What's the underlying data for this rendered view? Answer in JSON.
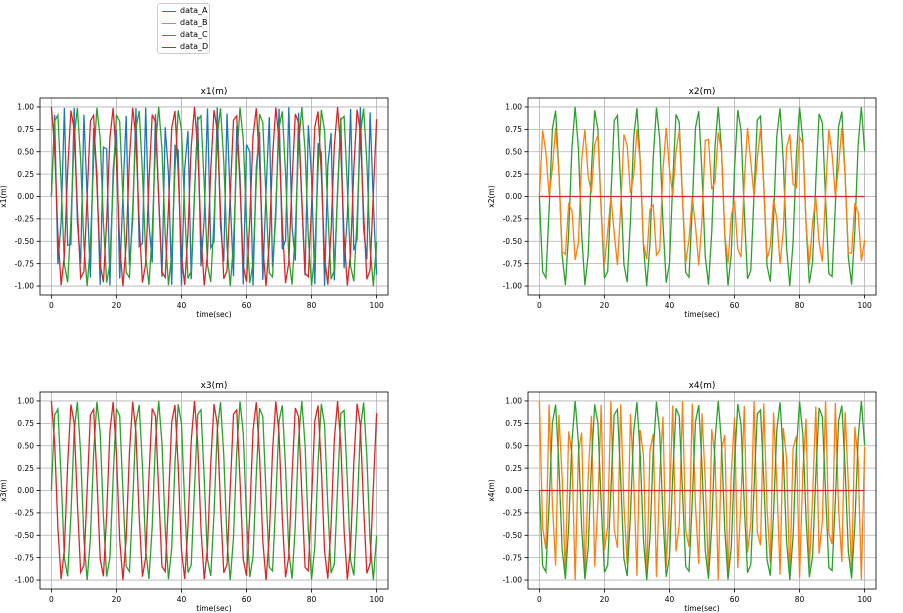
{
  "legend": {
    "items": [
      {
        "label": "data_A",
        "color": "#1f77b4"
      },
      {
        "label": "data_B",
        "color": "#ff7f0e"
      },
      {
        "label": "data_C",
        "color": "#2ca02c"
      },
      {
        "label": "data_D",
        "color": "#d62728"
      }
    ]
  },
  "chart_data": [
    {
      "type": "line",
      "title": "x1(m)",
      "xlabel": "time(sec)",
      "ylabel": "x1(m)",
      "xlim": [
        -3.5,
        103.5
      ],
      "ylim": [
        -1.1,
        1.1
      ],
      "grid": true,
      "xticks": [
        0,
        20,
        40,
        60,
        80,
        100
      ],
      "yticks": [
        -1.0,
        -0.75,
        -0.5,
        -0.25,
        0.0,
        0.25,
        0.5,
        0.75,
        1.0
      ],
      "ytick_labels": [
        "-1.00",
        "-0.75",
        "-0.50",
        "-0.25",
        "0.00",
        "0.25",
        "0.50",
        "0.75",
        "1.00"
      ],
      "x": {
        "start": 0,
        "end": 100,
        "step": 1
      },
      "series": [
        {
          "name": "data_A",
          "color": "#1f77b4",
          "function": "sin(2t)"
        },
        {
          "name": "data_C",
          "color": "#2ca02c",
          "function": "sin(t)"
        },
        {
          "name": "data_D",
          "color": "#d62728",
          "function": "cos(t)"
        }
      ]
    },
    {
      "type": "line",
      "title": "x2(m)",
      "xlabel": "time(sec)",
      "ylabel": "x2(m)",
      "xlim": [
        -3.5,
        103.5
      ],
      "ylim": [
        -1.1,
        1.1
      ],
      "grid": true,
      "xticks": [
        0,
        20,
        40,
        60,
        80,
        100
      ],
      "yticks": [
        -1.0,
        -0.75,
        -0.5,
        -0.25,
        0.0,
        0.25,
        0.5,
        0.75,
        1.0
      ],
      "ytick_labels": [
        "-1.00",
        "-0.75",
        "-0.50",
        "-0.25",
        "0.00",
        "0.25",
        "0.50",
        "0.75",
        "1.00"
      ],
      "x": {
        "start": 0,
        "end": 100,
        "step": 1
      },
      "series": [
        {
          "name": "data_C",
          "color": "#2ca02c",
          "function": "-sin(t)"
        },
        {
          "name": "data_B",
          "color": "#ff7f0e",
          "function": "sin(t)*cos(t/2)"
        },
        {
          "name": "data_D",
          "color": "#d62728",
          "function": "0"
        }
      ]
    },
    {
      "type": "line",
      "title": "x3(m)",
      "xlabel": "time(sec)",
      "ylabel": "x3(m)",
      "xlim": [
        -3.5,
        103.5
      ],
      "ylim": [
        -1.1,
        1.1
      ],
      "grid": true,
      "xticks": [
        0,
        20,
        40,
        60,
        80,
        100
      ],
      "yticks": [
        -1.0,
        -0.75,
        -0.5,
        -0.25,
        0.0,
        0.25,
        0.5,
        0.75,
        1.0
      ],
      "ytick_labels": [
        "-1.00",
        "-0.75",
        "-0.50",
        "-0.25",
        "0.00",
        "0.25",
        "0.50",
        "0.75",
        "1.00"
      ],
      "x": {
        "start": 0,
        "end": 100,
        "step": 1
      },
      "series": [
        {
          "name": "data_C",
          "color": "#2ca02c",
          "function": "sin(t)"
        },
        {
          "name": "data_D",
          "color": "#d62728",
          "function": "cos(t)"
        }
      ]
    },
    {
      "type": "line",
      "title": "x4(m)",
      "xlabel": "time(sec)",
      "ylabel": "x4(m)",
      "xlim": [
        -3.5,
        103.5
      ],
      "ylim": [
        -1.1,
        1.1
      ],
      "grid": true,
      "xticks": [
        0,
        20,
        40,
        60,
        80,
        100
      ],
      "yticks": [
        -1.0,
        -0.75,
        -0.5,
        -0.25,
        0.0,
        0.25,
        0.5,
        0.75,
        1.0
      ],
      "ytick_labels": [
        "-1.00",
        "-0.75",
        "-0.50",
        "-0.25",
        "0.00",
        "0.25",
        "0.50",
        "0.75",
        "1.00"
      ],
      "x": {
        "start": 0,
        "end": 100,
        "step": 1
      },
      "series": [
        {
          "name": "data_B",
          "color": "#ff7f0e",
          "function": "cos(2t)"
        },
        {
          "name": "data_C",
          "color": "#2ca02c",
          "function": "-sin(t)"
        },
        {
          "name": "data_D",
          "color": "#d62728",
          "function": "0"
        }
      ]
    }
  ]
}
